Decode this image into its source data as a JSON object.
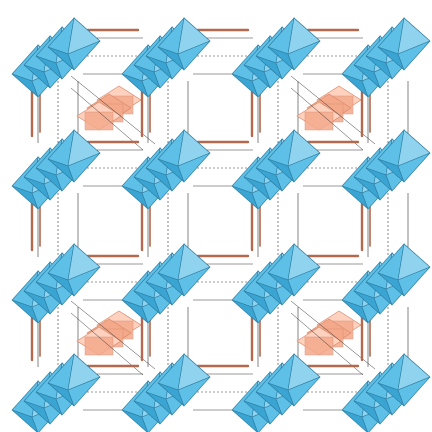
{
  "figure": {
    "kind": "crystal-structure-model",
    "text_labels": []
  },
  "colors": {
    "background": "#ffffff",
    "octahedron_face_light": "#8fd3ee",
    "octahedron_face_mid": "#5ec0e6",
    "octahedron_face_dark": "#3aa5d2",
    "octahedron_edge": "#2b7aa0",
    "cage_face_light": "#ffd2bf",
    "cage_face_dark": "#f4a98b",
    "cage_edge": "#d98a6c",
    "linker_rod": "#b4694d",
    "bond_line": "#333333"
  },
  "octahedron_sites": [
    {
      "col": 0,
      "row": 0
    },
    {
      "col": 1,
      "row": 0
    },
    {
      "col": 2,
      "row": 0
    },
    {
      "col": 3,
      "row": 0
    },
    {
      "col": 0,
      "row": 1
    },
    {
      "col": 1,
      "row": 1
    },
    {
      "col": 2,
      "row": 1
    },
    {
      "col": 3,
      "row": 1
    },
    {
      "col": 0,
      "row": 2
    },
    {
      "col": 1,
      "row": 2
    },
    {
      "col": 2,
      "row": 2
    },
    {
      "col": 3,
      "row": 2
    },
    {
      "col": 0,
      "row": 3
    },
    {
      "col": 1,
      "row": 3
    },
    {
      "col": 2,
      "row": 3
    },
    {
      "col": 3,
      "row": 3
    }
  ],
  "cage_sites": [
    {
      "col": 0,
      "row": 0
    },
    {
      "col": 1,
      "row": 0
    },
    {
      "col": 0,
      "row": 1
    },
    {
      "col": 1,
      "row": 1
    }
  ],
  "stack_depth": 4
}
